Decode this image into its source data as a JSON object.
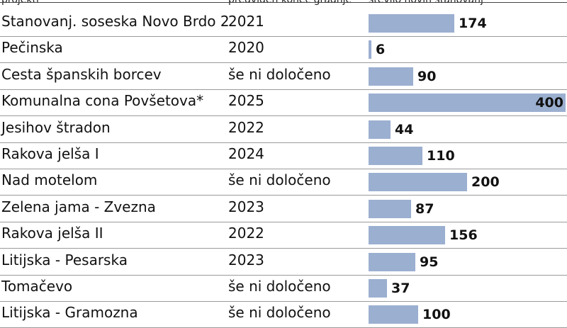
{
  "header": {
    "col1": "projekti",
    "col2": "predviden konec gradnje",
    "col3": "število novih stanovanj"
  },
  "chart_data": {
    "type": "bar",
    "orientation": "horizontal",
    "categories": [
      "Stanovanj. soseska Novo Brdo 2",
      "Pečinska",
      "Cesta španskih borcev",
      "Komunalna cona Povšetova*",
      "Jesihov štradon",
      "Rakova jelša I",
      "Nad motelom",
      "Zelena jama - Zvezna",
      "Rakova jelša II",
      "Litijska - Pesarska",
      "Tomačevo",
      "Litijska - Gramozna"
    ],
    "years": [
      "2021",
      "2020",
      "še ni določeno",
      "2025",
      "2022",
      "2024",
      "še ni določeno",
      "2023",
      "2022",
      "2023",
      "še ni določeno",
      "še ni določeno"
    ],
    "values": [
      174,
      6,
      90,
      400,
      44,
      110,
      200,
      87,
      156,
      95,
      37,
      100
    ],
    "xlim": [
      0,
      400
    ],
    "bar_color": "#9bafd0"
  }
}
